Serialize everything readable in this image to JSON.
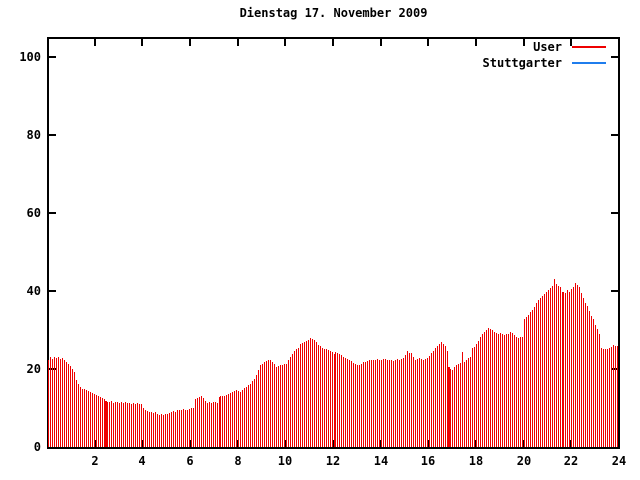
{
  "title": "Dienstag 17. November 2009",
  "legend": {
    "items": [
      {
        "name": "User",
        "color": "#ee0000"
      },
      {
        "name": "Stuttgarter",
        "color": "#1f7ded"
      }
    ]
  },
  "chart_data": {
    "type": "bar",
    "title": "Dienstag 17. November 2009",
    "xlabel": "",
    "ylabel": "",
    "x_unit": "hour of day",
    "sample_interval_minutes": 5,
    "xlim": [
      0,
      24
    ],
    "ylim": [
      0,
      105
    ],
    "x_ticks": [
      2,
      4,
      6,
      8,
      10,
      12,
      14,
      16,
      18,
      20,
      22,
      24
    ],
    "y_ticks": [
      0,
      20,
      40,
      60,
      80,
      100
    ],
    "grid": false,
    "legend_position": "top-right",
    "series": [
      {
        "name": "User",
        "color": "#ee0000",
        "style": "impulses",
        "highlight_indices": [
          29,
          86,
          144,
          202,
          259
        ],
        "values": [
          22.4,
          23.0,
          22.6,
          23.1,
          22.8,
          23.0,
          22.5,
          22.9,
          22.3,
          21.8,
          21.4,
          20.8,
          19.9,
          19.3,
          17.2,
          16.1,
          15.3,
          14.9,
          14.8,
          14.6,
          14.4,
          14.2,
          13.9,
          13.6,
          13.3,
          13.0,
          12.8,
          12.5,
          12.3,
          11.9,
          11.6,
          11.5,
          11.7,
          11.4,
          11.6,
          11.5,
          11.4,
          11.6,
          11.3,
          11.5,
          11.2,
          11.4,
          11.1,
          11.3,
          11.0,
          11.2,
          11.0,
          11.1,
          10.0,
          9.6,
          9.3,
          9.1,
          8.9,
          8.7,
          8.9,
          8.5,
          8.3,
          8.4,
          8.3,
          8.5,
          8.4,
          8.7,
          9.0,
          9.2,
          8.9,
          9.4,
          9.6,
          9.5,
          9.7,
          9.4,
          9.6,
          9.8,
          10.1,
          10.0,
          12.3,
          12.6,
          12.9,
          13.1,
          12.5,
          11.8,
          11.4,
          11.6,
          11.3,
          11.5,
          11.6,
          11.4,
          12.8,
          13.0,
          13.2,
          13.1,
          13.4,
          13.6,
          13.9,
          14.1,
          14.3,
          14.5,
          14.4,
          14.2,
          14.6,
          15.1,
          15.4,
          15.9,
          16.2,
          16.9,
          17.5,
          18.5,
          19.8,
          20.9,
          21.3,
          21.8,
          22.0,
          22.4,
          22.2,
          21.8,
          21.2,
          20.6,
          20.8,
          20.9,
          21.1,
          21.3,
          21.4,
          22.3,
          23.2,
          23.9,
          24.5,
          25.1,
          25.5,
          26.3,
          26.7,
          27.0,
          27.3,
          27.5,
          28.0,
          27.7,
          27.4,
          26.8,
          26.2,
          25.8,
          25.5,
          25.2,
          25.0,
          24.8,
          24.6,
          24.3,
          23.8,
          24.3,
          24.1,
          23.9,
          23.6,
          23.2,
          22.9,
          22.6,
          22.3,
          22.0,
          21.6,
          21.3,
          20.9,
          21.1,
          21.4,
          21.7,
          21.9,
          22.1,
          22.3,
          22.2,
          22.4,
          22.3,
          22.5,
          22.4,
          22.3,
          22.5,
          22.6,
          22.4,
          22.2,
          22.3,
          22.1,
          22.4,
          22.5,
          22.3,
          22.6,
          22.8,
          23.5,
          24.5,
          24.0,
          24.2,
          23.0,
          22.3,
          22.6,
          22.8,
          22.5,
          22.4,
          22.6,
          22.9,
          23.3,
          24.0,
          24.6,
          25.3,
          25.8,
          26.3,
          26.8,
          26.5,
          25.9,
          24.5,
          20.5,
          20.1,
          19.8,
          20.4,
          20.9,
          21.3,
          21.6,
          24.3,
          21.8,
          22.3,
          22.7,
          23.0,
          25.3,
          25.6,
          26.4,
          27.3,
          28.2,
          29.0,
          29.5,
          30.1,
          30.4,
          30.2,
          29.9,
          29.6,
          29.3,
          29.0,
          29.2,
          29.1,
          28.8,
          29.0,
          29.1,
          29.4,
          29.2,
          28.6,
          28.3,
          28.0,
          28.1,
          28.2,
          32.9,
          33.4,
          33.8,
          34.5,
          35.2,
          36.0,
          36.8,
          37.6,
          38.3,
          38.8,
          39.2,
          39.8,
          40.3,
          40.8,
          41.2,
          43.2,
          41.8,
          41.4,
          41.0,
          39.8,
          39.0,
          39.6,
          40.2,
          39.8,
          40.6,
          41.1,
          42.0,
          41.5,
          41.0,
          39.5,
          38.2,
          37.0,
          36.2,
          34.8,
          33.6,
          32.8,
          31.4,
          30.2,
          29.0,
          25.3,
          25.1,
          25.0,
          25.2,
          25.4,
          25.6,
          26.2,
          26.0,
          25.8
        ]
      },
      {
        "name": "Stuttgarter",
        "color": "#1f7ded",
        "style": "impulses",
        "values": []
      }
    ]
  }
}
